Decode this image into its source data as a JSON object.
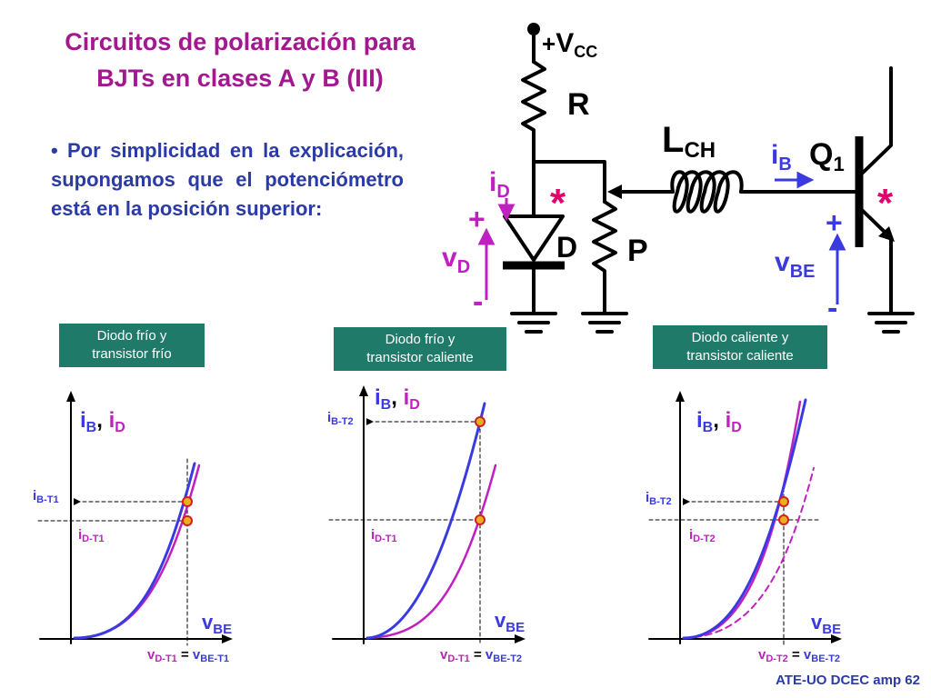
{
  "title_line1": "Circuitos de polarización para",
  "title_line2": "BJTs en clases A y B (III)",
  "bullet_symbol": "•",
  "bullet": "Por simplicidad en la explicación, supongamos que el potenciómetro está en la posición superior:",
  "circuit": {
    "vcc_plus": "+",
    "vcc_main": "V",
    "vcc_sub": "CC",
    "r": "R",
    "lch_main": "L",
    "lch_sub": "CH",
    "ib_main": "i",
    "ib_sub": "B",
    "q1_main": "Q",
    "q1_sub": "1",
    "id_main": "i",
    "id_sub": "D",
    "d": "D",
    "p": "P",
    "vd_main": "v",
    "vd_sub": "D",
    "vbe_main": "v",
    "vbe_sub": "BE",
    "plus": "+",
    "minus": "-",
    "star": "*"
  },
  "cases": [
    {
      "line1": "Diodo frío y",
      "line2": "transistor frío"
    },
    {
      "line1": "Diodo frío y",
      "line2": "transistor caliente"
    },
    {
      "line1": "Diodo caliente y",
      "line2": "transistor caliente"
    }
  ],
  "graphs": [
    {
      "yb": "i",
      "yb_sub": "B",
      "comma": ", ",
      "yd": "i",
      "yd_sub": "D",
      "upper_main": "i",
      "upper_sub": "B-T1",
      "lower_main": "i",
      "lower_sub": "D-T1",
      "xaxis_main": "v",
      "xaxis_sub": "BE",
      "eq_l": "v",
      "eq_l_sub": "D-T1",
      "eq": " = ",
      "eq_r": "v",
      "eq_r_sub": "BE-T1"
    },
    {
      "yb": "i",
      "yb_sub": "B",
      "comma": ", ",
      "yd": "i",
      "yd_sub": "D",
      "upper_main": "i",
      "upper_sub": "B-T2",
      "lower_main": "i",
      "lower_sub": "D-T1",
      "xaxis_main": "v",
      "xaxis_sub": "BE",
      "eq_l": "v",
      "eq_l_sub": "D-T1",
      "eq": " = ",
      "eq_r": "v",
      "eq_r_sub": "BE-T2"
    },
    {
      "yb": "i",
      "yb_sub": "B",
      "comma": ", ",
      "yd": "i",
      "yd_sub": "D",
      "upper_main": "i",
      "upper_sub": "B-T2",
      "lower_main": "i",
      "lower_sub": "D-T2",
      "xaxis_main": "v",
      "xaxis_sub": "BE",
      "eq_l": "v",
      "eq_l_sub": "D-T2",
      "eq": " = ",
      "eq_r": "v",
      "eq_r_sub": "BE-T2"
    }
  ],
  "footer": "ATE-UO DCEC amp 62",
  "colors": {
    "title": "#a3178f",
    "text": "#2a3aa6",
    "label_bg": "#1f7a6a",
    "star": "#e0006e",
    "blue_curve": "#3a3ae0",
    "magenta_curve": "#c020c0",
    "marker": "#e8b020"
  }
}
